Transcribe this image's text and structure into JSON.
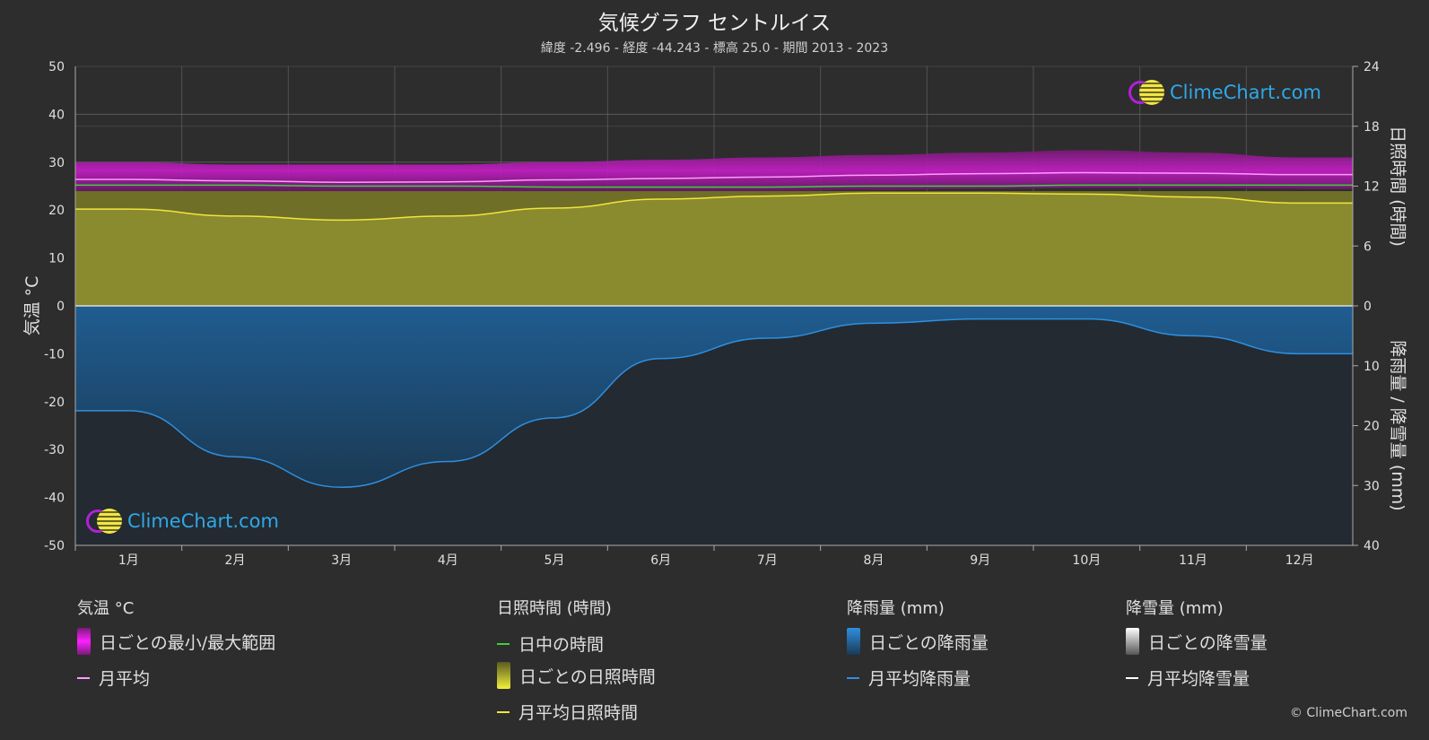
{
  "title": "気候グラフ セントルイス",
  "subtitle": "緯度 -2.496 - 経度 -44.243 - 標高 25.0 - 期間 2013 - 2023",
  "axes": {
    "left_label": "気温 °C",
    "right_top_label": "日照時間 (時間)",
    "right_bottom_label": "降雨量 / 降雪量 (mm)"
  },
  "logo_text": "ClimeChart.com",
  "copyright": "© ClimeChart.com",
  "legend": {
    "temp": {
      "heading": "気温 °C",
      "range": "日ごとの最小/最大範囲",
      "avg": "月平均"
    },
    "sun": {
      "heading": "日照時間 (時間)",
      "daylight": "日中の時間",
      "daily": "日ごとの日照時間",
      "avg": "月平均日照時間"
    },
    "rain": {
      "heading": "降雨量 (mm)",
      "daily": "日ごとの降雨量",
      "avg": "月平均降雨量"
    },
    "snow": {
      "heading": "降雪量 (mm)",
      "daily": "日ごとの降雪量",
      "avg": "月平均降雪量"
    }
  },
  "colors": {
    "background": "#2d2d2d",
    "temp_range": "#c81ec8",
    "temp_avg": "#ff9cff",
    "daylight": "#3bd13b",
    "sunshine_fill": "#8a8a2e",
    "sunshine_avg": "#f0e63c",
    "rain_fill": "#1f5f96",
    "rain_avg": "#2e8fe0",
    "snow": "#ffffff"
  },
  "chart_data": {
    "type": "area",
    "categories": [
      "1月",
      "2月",
      "3月",
      "4月",
      "5月",
      "6月",
      "7月",
      "8月",
      "9月",
      "10月",
      "11月",
      "12月"
    ],
    "temp_axis": {
      "ticks": [
        50,
        40,
        30,
        20,
        10,
        0,
        -10,
        -20,
        -30,
        -40,
        -50
      ],
      "ylim": [
        -50,
        50
      ]
    },
    "sun_axis": {
      "ticks": [
        24,
        18,
        12,
        6,
        0
      ],
      "ylim": [
        0,
        24
      ]
    },
    "precip_axis": {
      "ticks": [
        0,
        10,
        20,
        30,
        40
      ],
      "ylim": [
        0,
        40
      ]
    },
    "series": [
      {
        "name": "月平均",
        "axis": "temp",
        "values": [
          26.4,
          26.1,
          25.8,
          25.9,
          26.3,
          26.6,
          26.9,
          27.3,
          27.6,
          27.8,
          27.7,
          27.4
        ]
      },
      {
        "name": "日ごとの最小/最大範囲",
        "axis": "temp",
        "min": [
          24.0,
          24.0,
          24.0,
          24.0,
          24.0,
          24.0,
          24.0,
          24.2,
          24.4,
          24.6,
          24.6,
          24.4
        ],
        "max": [
          30.0,
          29.5,
          29.5,
          29.5,
          30.0,
          30.5,
          31.0,
          31.5,
          32.0,
          32.5,
          32.0,
          31.0
        ]
      },
      {
        "name": "日中の時間",
        "axis": "sun",
        "values": [
          12.1,
          12.1,
          12.0,
          12.0,
          11.9,
          11.9,
          11.9,
          12.0,
          12.0,
          12.1,
          12.1,
          12.1
        ]
      },
      {
        "name": "月平均日照時間",
        "axis": "sun",
        "values": [
          9.7,
          9.0,
          8.6,
          9.0,
          9.8,
          10.7,
          11.0,
          11.3,
          11.3,
          11.2,
          10.9,
          10.3
        ]
      },
      {
        "name": "月平均降雨量",
        "axis": "precip",
        "values": [
          17.5,
          25.2,
          30.3,
          26.0,
          18.7,
          8.8,
          5.4,
          2.9,
          2.2,
          2.2,
          5.0,
          8.0
        ]
      }
    ],
    "grid": true
  }
}
